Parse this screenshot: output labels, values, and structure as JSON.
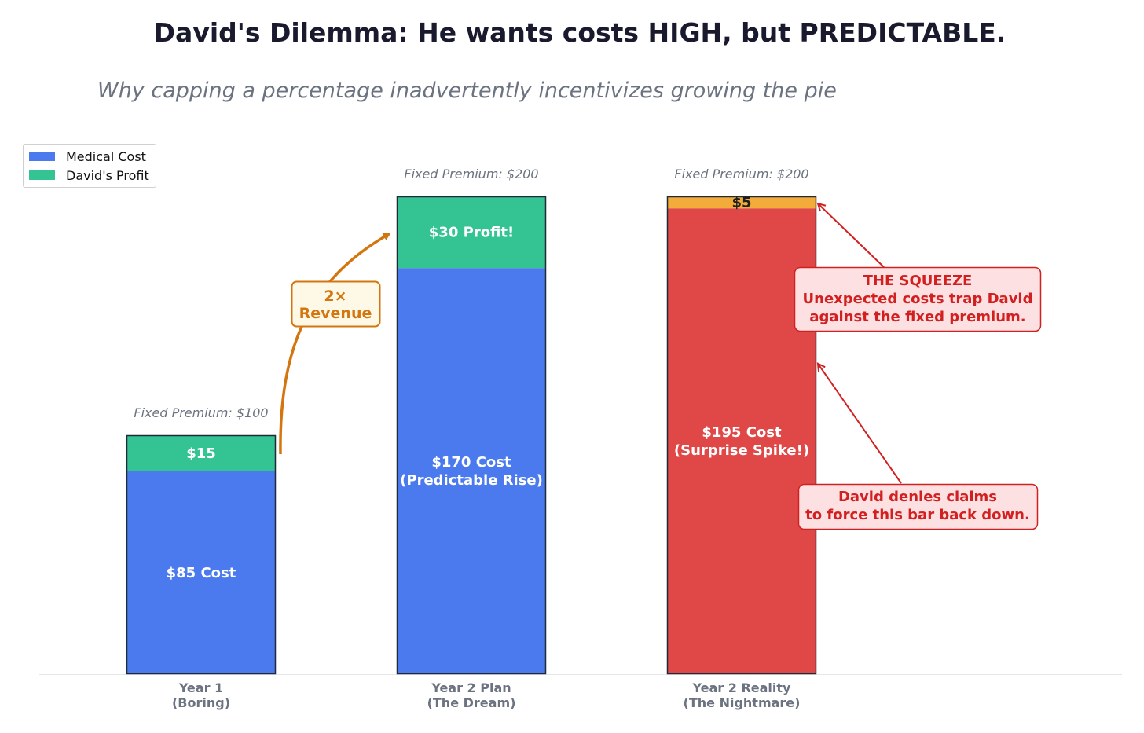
{
  "chart_data": {
    "type": "bar",
    "stacked": true,
    "title": "David's Dilemma: He wants costs HIGH, but PREDICTABLE.",
    "subtitle": "Why capping a percentage inadvertently incentivizes growing the pie",
    "ylim": [
      0,
      200
    ],
    "grid": false,
    "legend_position": "top-left",
    "legend": [
      {
        "name": "Medical Cost",
        "color": "#4a7aee"
      },
      {
        "name": "David's Profit",
        "color": "#34c494"
      }
    ],
    "categories": [
      {
        "line1": "Year 1",
        "line2": "(Boring)"
      },
      {
        "line1": "Year 2 Plan",
        "line2": "(The Dream)"
      },
      {
        "line1": "Year 2 Reality",
        "line2": "(The Nightmare)"
      }
    ],
    "premium_labels": [
      "Fixed Premium: $100",
      "Fixed Premium: $200",
      "Fixed Premium: $200"
    ],
    "bars": [
      {
        "cost": 85,
        "profit": 15,
        "cost_color": "#4a7aee",
        "profit_color": "#34c494",
        "cost_label": [
          "$85 Cost"
        ],
        "profit_label": "$15",
        "profit_label_dark": false
      },
      {
        "cost": 170,
        "profit": 30,
        "cost_color": "#4a7aee",
        "profit_color": "#34c494",
        "cost_label": [
          "$170 Cost",
          "(Predictable Rise)"
        ],
        "profit_label": "$30 Profit!",
        "profit_label_dark": false
      },
      {
        "cost": 195,
        "profit": 5,
        "cost_color": "#e04848",
        "profit_color": "#f3ac3a",
        "cost_label": [
          "$195 Cost",
          "(Surprise Spike!)"
        ],
        "profit_label": "$5",
        "profit_label_dark": true
      }
    ],
    "annotations": {
      "revenue": {
        "lines": [
          "2×",
          "Revenue"
        ],
        "color": "#d4760f",
        "bg": "#fef9e7"
      },
      "squeeze": {
        "lines": [
          "THE SQUEEZE",
          "Unexpected costs trap David",
          "against the fixed premium."
        ],
        "color": "#d22020",
        "bg": "#fde0e2",
        "target_value": 197
      },
      "denies": {
        "lines": [
          "David denies claims",
          "to force this bar back down."
        ],
        "color": "#d22020",
        "bg": "#fde0e2",
        "target_value": 130
      }
    },
    "colors": {
      "axis_label": "#6b7280",
      "premium_label": "#6b7280",
      "title": "#1a1a2e"
    }
  }
}
